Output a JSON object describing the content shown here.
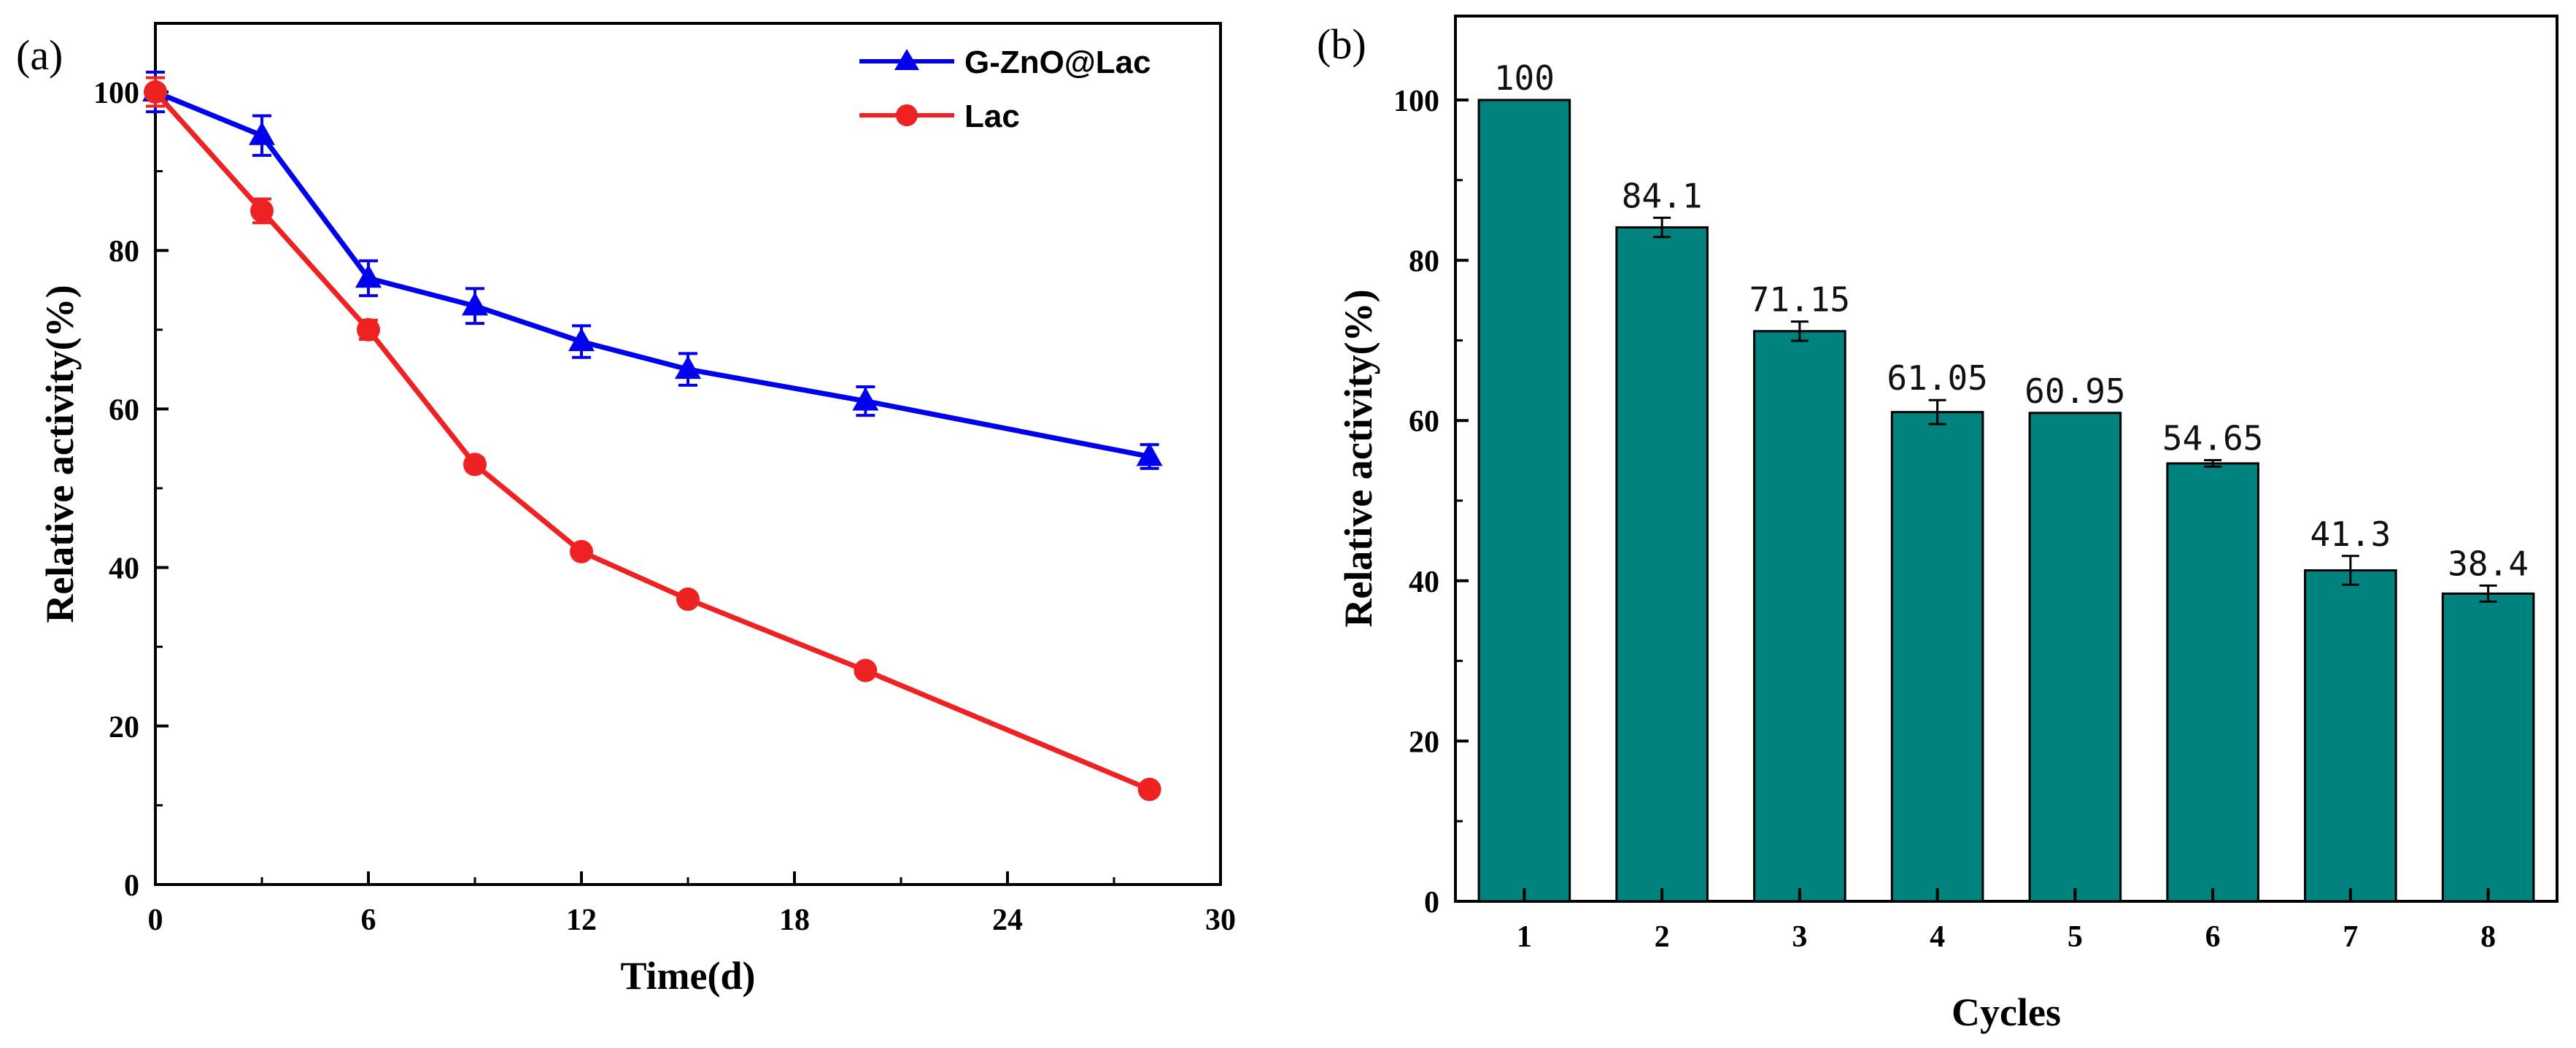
{
  "chart_data": [
    {
      "panel": "(a)",
      "type": "line",
      "xlabel": "Time(d)",
      "ylabel": "Relative activity(%)",
      "xlim": [
        0,
        30
      ],
      "ylim": [
        0,
        110
      ],
      "xticks": [
        "0",
        "6",
        "12",
        "18",
        "24",
        "30"
      ],
      "yticks": [
        "0",
        "20",
        "40",
        "60",
        "80",
        "100"
      ],
      "legend_position": "top-right",
      "series": [
        {
          "name": "G-ZnO@Lac",
          "color": "#0000ee",
          "marker": "triangle",
          "x": [
            0,
            3,
            6,
            9,
            12,
            15,
            20,
            28
          ],
          "values": [
            100,
            94.5,
            76.5,
            73,
            68.5,
            65,
            61,
            54
          ],
          "errors": [
            2.5,
            2.5,
            2.2,
            2.2,
            2.0,
            2.0,
            1.8,
            1.5
          ]
        },
        {
          "name": "Lac",
          "color": "#ee2222",
          "marker": "circle",
          "x": [
            0,
            3,
            6,
            9,
            12,
            15,
            20,
            28
          ],
          "values": [
            100,
            85,
            70,
            53,
            42,
            36,
            27,
            12
          ],
          "errors": [
            1.8,
            1.5,
            1.2,
            0.8,
            0.5,
            0.5,
            0.5,
            0.5
          ]
        }
      ]
    },
    {
      "panel": "(b)",
      "type": "bar",
      "xlabel": "Cycles",
      "ylabel": "Relative activity(%)",
      "ylim": [
        0,
        110
      ],
      "yticks": [
        "0",
        "20",
        "40",
        "60",
        "80",
        "100"
      ],
      "bar_color": "#00827f",
      "categories": [
        "1",
        "2",
        "3",
        "4",
        "5",
        "6",
        "7",
        "8"
      ],
      "values": [
        100,
        84.1,
        71.15,
        61.05,
        60.95,
        54.65,
        41.3,
        38.4
      ],
      "labels": [
        "100",
        "84.1",
        "71.15",
        "61.05",
        "60.95",
        "54.65",
        "41.3",
        "38.4"
      ],
      "errors": [
        0,
        1.2,
        1.2,
        1.5,
        0,
        0.4,
        1.8,
        1.0
      ]
    }
  ]
}
